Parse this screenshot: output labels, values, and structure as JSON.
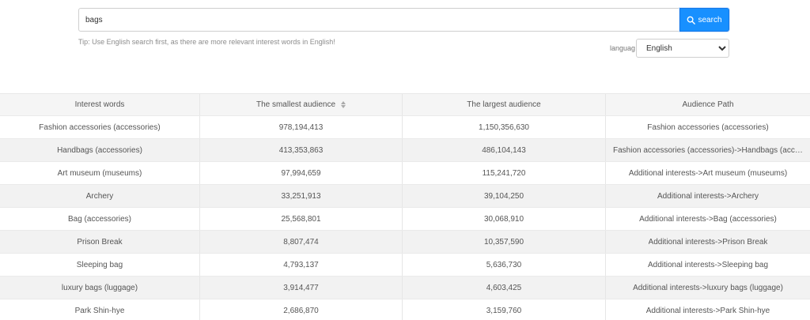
{
  "search": {
    "value": "bags",
    "button_label": "search",
    "tip": "Tip: Use English search first, as there are more relevant interest words in English!"
  },
  "language": {
    "label": "languag",
    "selected": "English"
  },
  "table": {
    "headers": [
      "Interest words",
      "The smallest audience",
      "The largest audience",
      "Audience Path"
    ],
    "rows": [
      [
        "Fashion accessories (accessories)",
        "978,194,413",
        "1,150,356,630",
        "Fashion accessories (accessories)"
      ],
      [
        "Handbags (accessories)",
        "413,353,863",
        "486,104,143",
        "Fashion accessories (accessories)->Handbags (accessories)"
      ],
      [
        "Art museum (museums)",
        "97,994,659",
        "115,241,720",
        "Additional interests->Art museum (museums)"
      ],
      [
        "Archery",
        "33,251,913",
        "39,104,250",
        "Additional interests->Archery"
      ],
      [
        "Bag (accessories)",
        "25,568,801",
        "30,068,910",
        "Additional interests->Bag (accessories)"
      ],
      [
        "Prison Break",
        "8,807,474",
        "10,357,590",
        "Additional interests->Prison Break"
      ],
      [
        "Sleeping bag",
        "4,793,137",
        "5,636,730",
        "Additional interests->Sleeping bag"
      ],
      [
        "luxury bags (luggage)",
        "3,914,477",
        "4,603,425",
        "Additional interests->luxury bags (luggage)"
      ],
      [
        "Park Shin-hye",
        "2,686,870",
        "3,159,760",
        "Additional interests->Park Shin-hye"
      ]
    ]
  },
  "colors": {
    "accent": "#1890ff",
    "alt_row": "#f2f2f2",
    "header_bg": "#f5f5f5"
  }
}
